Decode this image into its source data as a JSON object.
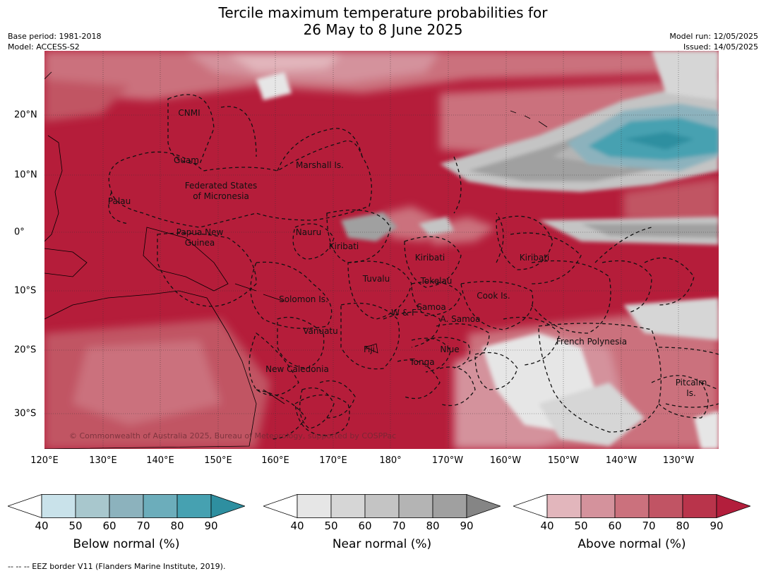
{
  "title": {
    "line1": "Tercile maximum temperature probabilities for",
    "line2": "26 May to 8 June 2025"
  },
  "meta": {
    "base_period": "Base period: 1981-2018",
    "model": "Model: ACCESS-S2",
    "model_run": "Model run: 12/05/2025",
    "issued": "Issued: 14/05/2025"
  },
  "map": {
    "lon_labels": [
      "120°E",
      "130°E",
      "140°E",
      "150°E",
      "160°E",
      "170°E",
      "180°",
      "170°W",
      "160°W",
      "150°W",
      "140°W",
      "130°W"
    ],
    "lat_labels": [
      "20°N",
      "10°N",
      "0°",
      "10°S",
      "20°S",
      "30°S"
    ],
    "regions": {
      "cnmi": "CNMI",
      "guam": "Guam",
      "marshall": "Marshall Is.",
      "fsm1": "Federated States",
      "fsm2": "of Micronesia",
      "palau": "Palau",
      "png1": "Papua New",
      "png2": "Guinea",
      "nauru": "Nauru",
      "kiribati_w": "Kiribati",
      "kiribati_c": "Kiribati",
      "kiribati_e": "Kiribati",
      "tuvalu": "Tuvalu",
      "tokelau": "Tokelau",
      "cook": "Cook Is.",
      "solomon": "Solomon Is.",
      "wf": "W & F",
      "samoa": "Samoa",
      "asamoa": "A. Samoa",
      "vanuatu": "Vanuatu",
      "fiji": "Fiji",
      "niue": "Niue",
      "tonga": "Tonga",
      "newcal": "New Caledonia",
      "frpoly": "French Polynesia",
      "pitcairn1": "Pitcairn",
      "pitcairn2": "Is."
    },
    "copyright": "© Commonwealth of Australia 2025, Bureau of Meteorology, supported by COSPPac"
  },
  "colorbars": [
    {
      "title": "Below normal (%)",
      "ticks": [
        "40",
        "50",
        "60",
        "70",
        "80",
        "90"
      ],
      "colors": [
        "#c9e2ea",
        "#a8c7cd",
        "#8cb2bd",
        "#6cadbb",
        "#46a1b1"
      ],
      "over": "#2e8fa0"
    },
    {
      "title": "Near normal (%)",
      "ticks": [
        "40",
        "50",
        "60",
        "70",
        "80",
        "90"
      ],
      "colors": [
        "#e6e6e6",
        "#d6d6d6",
        "#c4c4c4",
        "#b4b4b4",
        "#a0a0a0"
      ],
      "over": "#858585"
    },
    {
      "title": "Above normal (%)",
      "ticks": [
        "40",
        "50",
        "60",
        "70",
        "80",
        "90"
      ],
      "colors": [
        "#e2b6bc",
        "#d4929c",
        "#cb717d",
        "#c15464",
        "#b9344b"
      ],
      "over": "#b31e3c"
    }
  ],
  "footer": "--  --  -- EEZ border V11 (Flanders Marine Institute, 2019)."
}
